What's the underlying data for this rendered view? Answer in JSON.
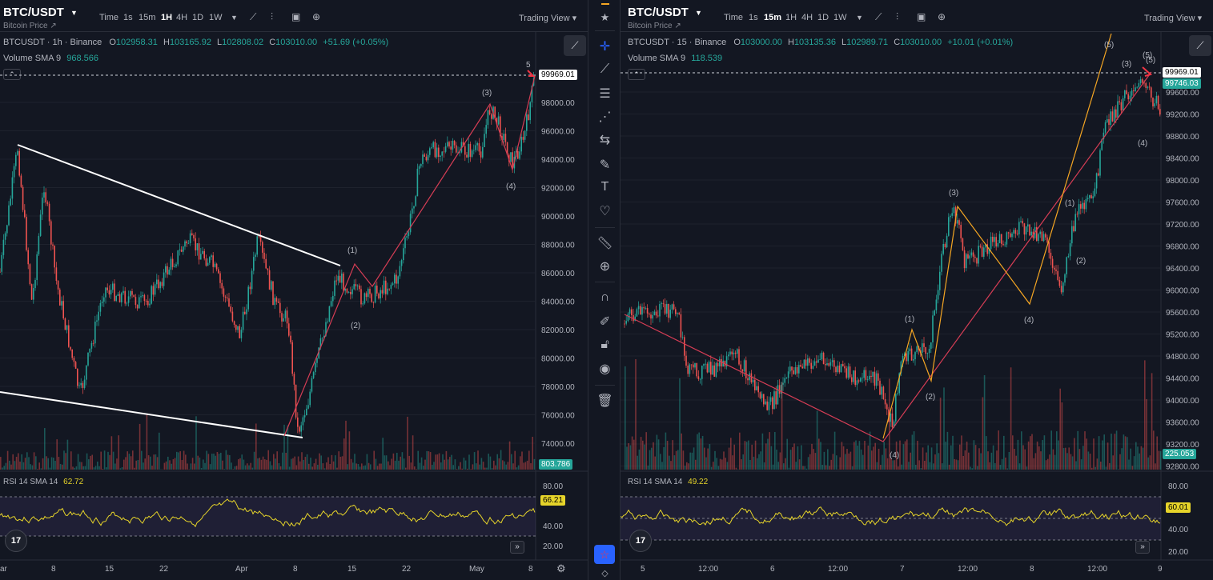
{
  "left": {
    "symbol": "BTC/USDT",
    "subtitle": "Bitcoin Price ↗",
    "timeframes": [
      "Time",
      "1s",
      "15m",
      "1H",
      "4H",
      "1D",
      "1W"
    ],
    "active_timeframe": "1H",
    "tv_label": "Trading View ▾",
    "legend_symbol": "BTCUSDT · 1h · Binance",
    "ohlc": {
      "o_label": "O",
      "o": "102958.31",
      "h_label": "H",
      "h": "103165.92",
      "l_label": "L",
      "l": "102808.02",
      "c_label": "C",
      "c": "103010.00",
      "change": "+51.69 (+0.05%)"
    },
    "volume_label": "Volume SMA 9",
    "volume_value": "968.566",
    "price_labels": [
      "98000.00",
      "96000.00",
      "94000.00",
      "92000.00",
      "90000.00",
      "88000.00",
      "86000.00",
      "84000.00",
      "82000.00",
      "80000.00",
      "78000.00",
      "76000.00",
      "74000.00"
    ],
    "price_tag": "99969.01",
    "volume_tag": "803.786",
    "time_labels": [
      "ar",
      "8",
      "15",
      "22",
      "Apr",
      "8",
      "15",
      "22",
      "May",
      "8"
    ],
    "rsi_label": "RSI 14 SMA 14",
    "rsi_value": "62.72",
    "rsi_axis": [
      "80.00",
      "40.00",
      "20.00"
    ],
    "rsi_tag": "66.21",
    "wave_labels": [
      {
        "text": "(1)"
      },
      {
        "text": "(2)"
      },
      {
        "text": "(3)"
      },
      {
        "text": "(4)"
      },
      {
        "text": "5"
      }
    ]
  },
  "right": {
    "symbol": "BTC/USDT",
    "subtitle": "Bitcoin Price ↗",
    "timeframes": [
      "Time",
      "1s",
      "15m",
      "1H",
      "4H",
      "1D",
      "1W"
    ],
    "active_timeframe": "15m",
    "tv_label": "Trading View ▾",
    "legend_symbol": "BTCUSDT · 15 · Binance",
    "ohlc": {
      "o_label": "O",
      "o": "103000.00",
      "h_label": "H",
      "h": "103135.36",
      "l_label": "L",
      "l": "102989.71",
      "c_label": "C",
      "c": "103010.00",
      "change": "+10.01 (+0.01%)"
    },
    "volume_label": "Volume SMA 9",
    "volume_value": "118.539",
    "price_labels": [
      "99600.00",
      "99200.00",
      "98800.00",
      "98400.00",
      "98000.00",
      "97600.00",
      "97200.00",
      "96800.00",
      "96400.00",
      "96000.00",
      "95600.00",
      "95200.00",
      "94800.00",
      "94400.00",
      "94000.00",
      "93600.00",
      "93200.00",
      "92800.00"
    ],
    "price_tag": "99969.01",
    "price_tag2": "99746.03",
    "volume_tag": "225.053",
    "time_labels": [
      "5",
      "12:00",
      "6",
      "12:00",
      "7",
      "12:00",
      "8",
      "12:00",
      "9"
    ],
    "rsi_label": "RSI 14 SMA 14",
    "rsi_value": "49.22",
    "rsi_axis": [
      "80.00",
      "40.00",
      "20.00"
    ],
    "rsi_tag": "60.01",
    "orange_waves": [
      "(1)",
      "(2)",
      "(3)",
      "(4)",
      "(5)"
    ],
    "yellow_waves": [
      "(1)",
      "(2)",
      "(3)",
      "(4)",
      "(5)"
    ],
    "red_waves": [
      "(4)",
      "(5)"
    ]
  },
  "colors": {
    "background": "#131722",
    "grid": "#1e222d",
    "up": "#26a69a",
    "down": "#ef5350",
    "wave_red": "#d63d55",
    "wave_orange": "#f5a623",
    "wave_yellow": "#f7e332",
    "rsi_line": "#e6d42a",
    "accent": "#2962ff"
  },
  "toolbar_icons": [
    "crosshair-icon",
    "trend-line-icon",
    "fib-icon",
    "pattern-icon",
    "projection-icon",
    "brush-icon",
    "text-icon",
    "heart-icon",
    "ruler-icon",
    "zoom-icon",
    "magnet-icon",
    "lock-draw-icon",
    "lock-icon",
    "eye-icon",
    "trash-icon"
  ]
}
